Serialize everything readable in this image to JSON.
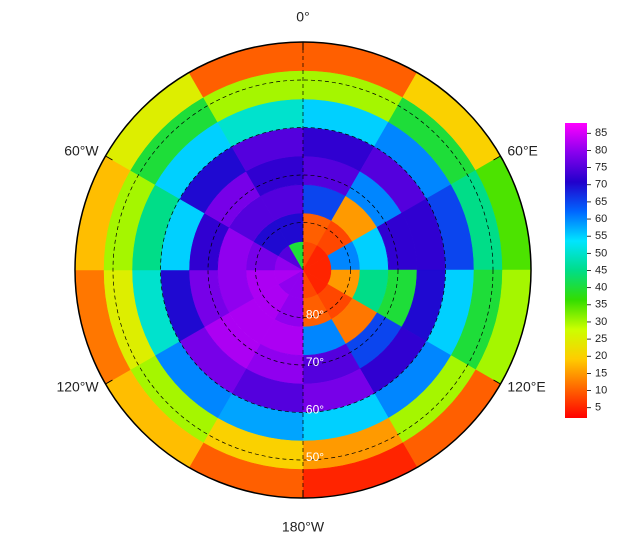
{
  "chart_data": {
    "type": "polar-heatmap",
    "lon_labels": [
      "0°",
      "60°E",
      "120°E",
      "180°W",
      "120°W",
      "60°W"
    ],
    "lat_labels": [
      "80°",
      "70°",
      "60°",
      "50°"
    ],
    "rings": [
      [
        8,
        5,
        5,
        5,
        5,
        8,
        80,
        80,
        82,
        80,
        75,
        40
      ],
      [
        10,
        8,
        60,
        15,
        8,
        10,
        80,
        82,
        82,
        78,
        70,
        70
      ],
      [
        65,
        15,
        55,
        45,
        12,
        60,
        82,
        82,
        80,
        80,
        75,
        75
      ],
      [
        75,
        60,
        72,
        40,
        65,
        75,
        80,
        82,
        78,
        72,
        78,
        72
      ],
      [
        72,
        75,
        72,
        70,
        72,
        78,
        75,
        78,
        70,
        55,
        70,
        75
      ],
      [
        55,
        60,
        65,
        55,
        60,
        55,
        58,
        60,
        50,
        45,
        55,
        50
      ],
      [
        30,
        40,
        45,
        40,
        30,
        15,
        20,
        30,
        25,
        30,
        40,
        30
      ],
      [
        10,
        20,
        35,
        30,
        10,
        5,
        10,
        18,
        12,
        18,
        25,
        10
      ]
    ],
    "clim": [
      2,
      88
    ],
    "colorbar_ticks": [
      5,
      10,
      15,
      20,
      25,
      30,
      35,
      40,
      45,
      50,
      55,
      60,
      65,
      70,
      75,
      80,
      85
    ],
    "colormap": [
      "#ff0000",
      "#ff6600",
      "#ffcc00",
      "#ccff00",
      "#33dd00",
      "#00dd88",
      "#00e5ff",
      "#0066ff",
      "#2200cc",
      "#8800ee",
      "#ff00ff"
    ]
  }
}
